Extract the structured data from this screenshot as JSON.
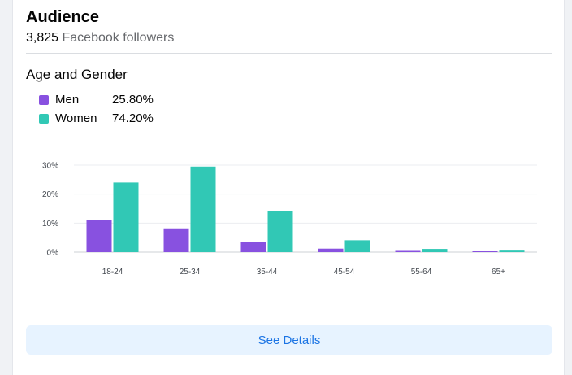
{
  "audience": {
    "title": "Audience",
    "follower_count": "3,825",
    "follower_label": "Facebook followers"
  },
  "age_gender": {
    "title": "Age and Gender",
    "legend": [
      {
        "name": "Men",
        "percent": "25.80%",
        "color": "#8851e0"
      },
      {
        "name": "Women",
        "percent": "74.20%",
        "color": "#31c8b5"
      }
    ]
  },
  "chart_data": {
    "type": "bar",
    "categories": [
      "18-24",
      "25-34",
      "35-44",
      "45-54",
      "55-64",
      "65+"
    ],
    "series": [
      {
        "name": "Men",
        "values": [
          11,
          8.2,
          3.6,
          1.2,
          0.7,
          0.4
        ],
        "color": "#8851e0"
      },
      {
        "name": "Women",
        "values": [
          24,
          29.5,
          14.3,
          4.1,
          1.1,
          0.8
        ],
        "color": "#31c8b5"
      }
    ],
    "y_ticks": [
      "30%",
      "20%",
      "10%",
      "0%"
    ],
    "ylim": [
      0,
      30
    ],
    "grid": true,
    "title": "",
    "xlabel": "",
    "ylabel": ""
  },
  "actions": {
    "see_details_label": "See Details"
  }
}
